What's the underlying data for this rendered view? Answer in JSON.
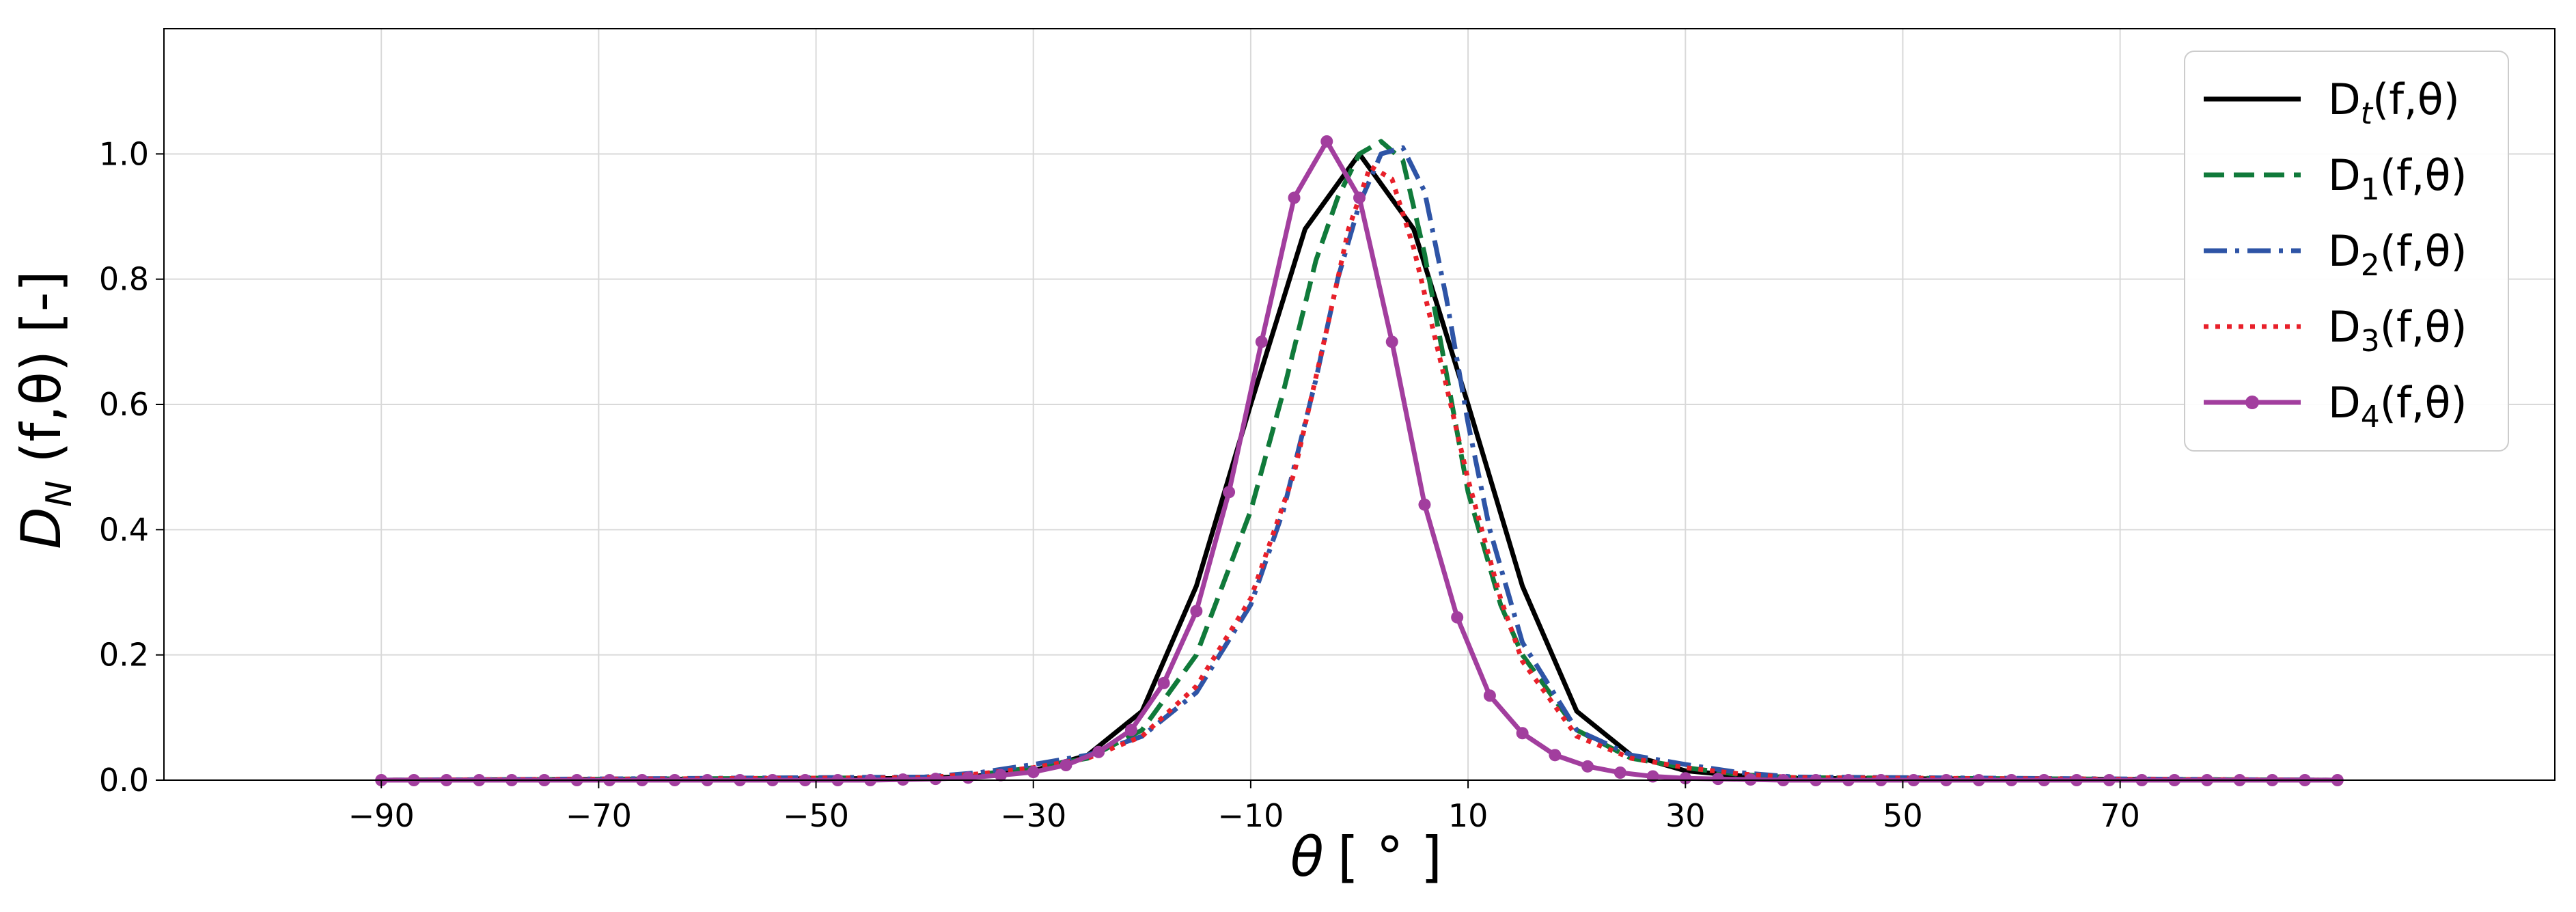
{
  "chart_data": {
    "type": "line",
    "xlabel": "θ [ ° ]",
    "xlabel_theta": "θ",
    "xlabel_unit": "[ ° ]",
    "ylabel_main": "D",
    "ylabel_sub": "N",
    "ylabel_rest": " (f,θ) [-]",
    "xlim": [
      -110,
      110
    ],
    "ylim": [
      0,
      1.2
    ],
    "xticks": [
      -90,
      -70,
      -50,
      -30,
      -10,
      10,
      30,
      50,
      70
    ],
    "xtick_labels": [
      "−90",
      "−70",
      "−50",
      "−30",
      "−10",
      "10",
      "30",
      "50",
      "70"
    ],
    "yticks": [
      0.0,
      0.2,
      0.4,
      0.6,
      0.8,
      1.0
    ],
    "ytick_labels": [
      "0.0",
      "0.2",
      "0.4",
      "0.6",
      "0.8",
      "1.0"
    ],
    "grid": true,
    "legend_position": "top-right",
    "series": [
      {
        "name": "Dt(f,θ)",
        "label_base": "D",
        "label_sub": "t",
        "label_rest": "(f,θ)",
        "color": "#000000",
        "style": "solid",
        "x": [
          -90,
          -40,
          -35,
          -30,
          -25,
          -20,
          -15,
          -10,
          -5,
          0,
          5,
          10,
          15,
          20,
          25,
          30,
          35,
          40,
          90
        ],
        "y": [
          0,
          0.003,
          0.007,
          0.015,
          0.04,
          0.11,
          0.31,
          0.6,
          0.88,
          1.0,
          0.88,
          0.6,
          0.31,
          0.11,
          0.04,
          0.015,
          0.007,
          0.003,
          0
        ]
      },
      {
        "name": "D1(f,θ)",
        "label_base": "D",
        "label_sub": "1",
        "label_rest": "(f,θ)",
        "color": "#107a3a",
        "style": "dashed",
        "x": [
          -90,
          -40,
          -35,
          -30,
          -25,
          -20,
          -15,
          -10,
          -7,
          -4,
          -2,
          0,
          2,
          4,
          6,
          8,
          10,
          13,
          15,
          20,
          25,
          30,
          35,
          40,
          90
        ],
        "y": [
          0,
          0.004,
          0.009,
          0.02,
          0.035,
          0.08,
          0.2,
          0.43,
          0.62,
          0.83,
          0.93,
          1.0,
          1.02,
          0.99,
          0.84,
          0.65,
          0.46,
          0.28,
          0.2,
          0.08,
          0.035,
          0.02,
          0.009,
          0.004,
          0
        ]
      },
      {
        "name": "D2(f,θ)",
        "label_base": "D",
        "label_sub": "2",
        "label_rest": "(f,θ)",
        "color": "#2e54a6",
        "style": "dashdot",
        "x": [
          -90,
          -40,
          -35,
          -30,
          -25,
          -20,
          -15,
          -10,
          -7,
          -4,
          -2,
          0,
          2,
          4,
          6,
          8,
          10,
          12,
          15,
          20,
          25,
          30,
          35,
          40,
          90
        ],
        "y": [
          0,
          0.005,
          0.012,
          0.025,
          0.04,
          0.07,
          0.14,
          0.28,
          0.43,
          0.64,
          0.8,
          0.92,
          1.0,
          1.01,
          0.94,
          0.77,
          0.57,
          0.4,
          0.22,
          0.08,
          0.04,
          0.025,
          0.012,
          0.005,
          0
        ]
      },
      {
        "name": "D3(f,θ)",
        "label_base": "D",
        "label_sub": "3",
        "label_rest": "(f,θ)",
        "color": "#e8202a",
        "style": "dotted",
        "x": [
          -90,
          -40,
          -35,
          -30,
          -25,
          -20,
          -15,
          -10,
          -6,
          -3,
          -1,
          1,
          3,
          5,
          8,
          10,
          13,
          15,
          20,
          25,
          30,
          35,
          40,
          90
        ],
        "y": [
          0,
          0.004,
          0.01,
          0.02,
          0.035,
          0.07,
          0.15,
          0.29,
          0.49,
          0.72,
          0.88,
          0.98,
          0.96,
          0.85,
          0.63,
          0.48,
          0.29,
          0.19,
          0.07,
          0.035,
          0.02,
          0.01,
          0.004,
          0
        ]
      },
      {
        "name": "D4(f,θ)",
        "label_base": "D",
        "label_sub": "4",
        "label_rest": "(f,θ)",
        "color": "#a23e9e",
        "style": "solid-marker",
        "x": [
          -90,
          -87,
          -84,
          -81,
          -78,
          -75,
          -72,
          -69,
          -66,
          -63,
          -60,
          -57,
          -54,
          -51,
          -48,
          -45,
          -42,
          -39,
          -36,
          -33,
          -30,
          -27,
          -24,
          -21,
          -18,
          -15,
          -12,
          -9,
          -6,
          -3,
          0,
          3,
          6,
          9,
          12,
          15,
          18,
          21,
          24,
          27,
          30,
          33,
          36,
          39,
          42,
          45,
          48,
          51,
          54,
          57,
          60,
          63,
          66,
          69,
          72,
          75,
          78,
          81,
          84,
          87,
          90
        ],
        "y": [
          0,
          0,
          0,
          0,
          0,
          0,
          0,
          0,
          0,
          0,
          0,
          0,
          0,
          0,
          0,
          0,
          0.001,
          0.002,
          0.004,
          0.008,
          0.013,
          0.024,
          0.045,
          0.08,
          0.155,
          0.27,
          0.46,
          0.7,
          0.93,
          1.02,
          0.93,
          0.7,
          0.44,
          0.26,
          0.135,
          0.075,
          0.04,
          0.022,
          0.012,
          0.006,
          0.003,
          0.002,
          0.001,
          0,
          0,
          0,
          0,
          0,
          0,
          0,
          0,
          0,
          0,
          0,
          0,
          0,
          0,
          0,
          0,
          0,
          0
        ]
      }
    ]
  }
}
